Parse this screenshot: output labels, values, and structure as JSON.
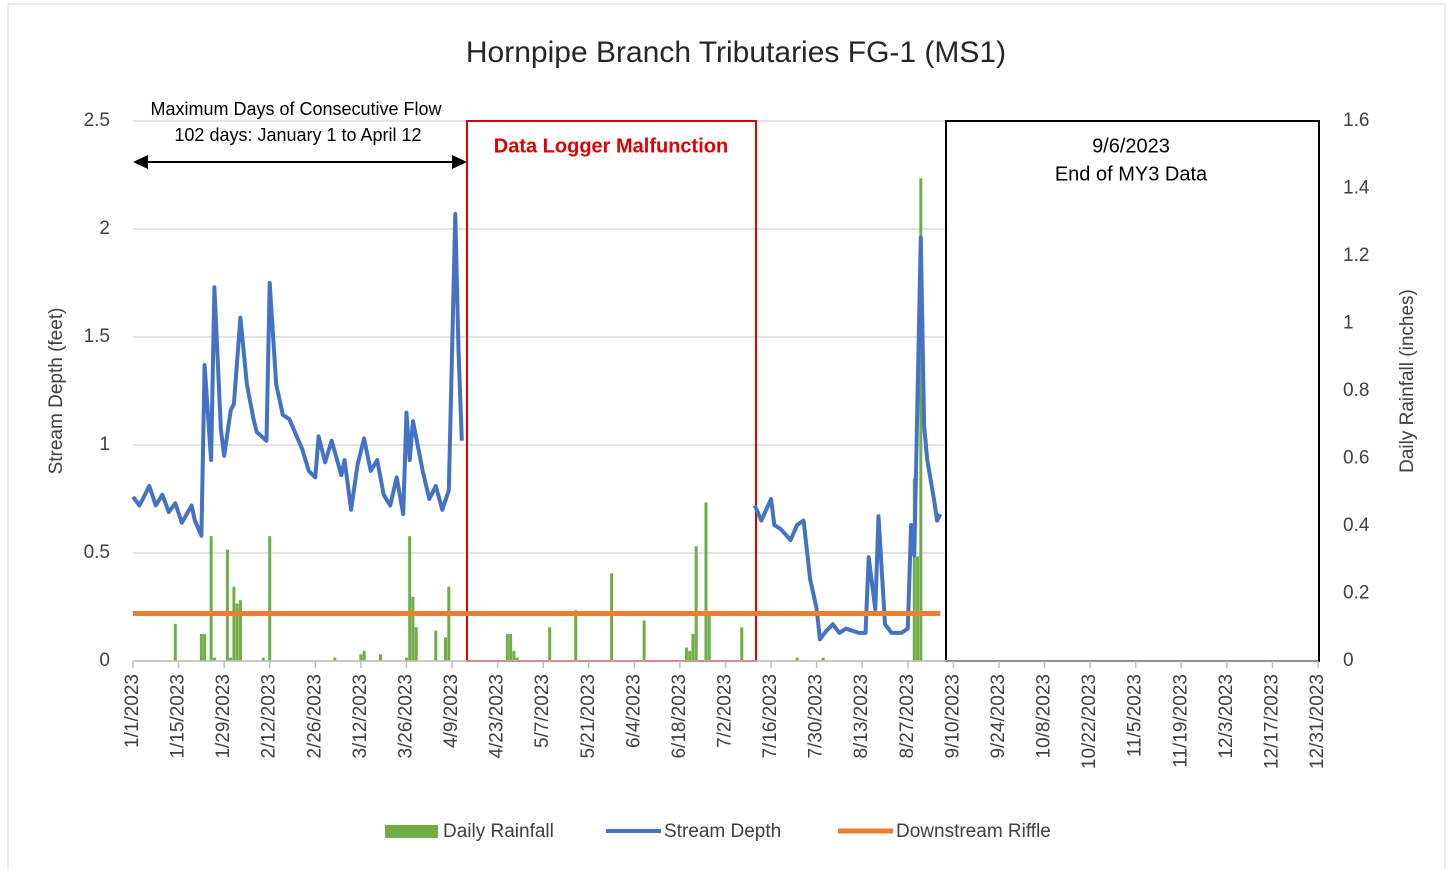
{
  "chart_data": {
    "type": "combo",
    "title": "Hornpipe Branch Tributaries FG-1 (MS1)",
    "ylabel": "Stream Depth (feet)",
    "y2label": "Daily Rainfall (inches)",
    "xlim": [
      "1/1/2023",
      "12/31/2023"
    ],
    "xticks": [
      "1/1/2023",
      "1/15/2023",
      "1/29/2023",
      "2/12/2023",
      "2/26/2023",
      "3/12/2023",
      "3/26/2023",
      "4/9/2023",
      "4/23/2023",
      "5/7/2023",
      "5/21/2023",
      "6/4/2023",
      "6/18/2023",
      "7/2/2023",
      "7/16/2023",
      "7/30/2023",
      "8/13/2023",
      "8/27/2023",
      "9/10/2023",
      "9/24/2023",
      "10/8/2023",
      "10/22/2023",
      "11/5/2023",
      "11/19/2023",
      "12/3/2023",
      "12/17/2023",
      "12/31/2023"
    ],
    "ylim": [
      0,
      2.5
    ],
    "yticks": [
      0,
      0.5,
      1,
      1.5,
      2,
      2.5
    ],
    "y2lim": [
      0,
      1.6
    ],
    "y2ticks": [
      0,
      0.2,
      0.4,
      0.6,
      0.8,
      1,
      1.2,
      1.4,
      1.6
    ],
    "grid": true,
    "legend": "bottom",
    "annotations": [
      {
        "text": "Maximum Days of Consecutive Flow"
      },
      {
        "text": "102 days: January 1 to April 12"
      },
      {
        "text": "Data Logger Malfunction"
      },
      {
        "text": "9/6/2023"
      },
      {
        "text": "End of MY3 Data"
      }
    ],
    "series": [
      {
        "name": "Daily Rainfall",
        "type": "bar",
        "axis": "y2",
        "color": "#70ad47",
        "x": [
          "1/14/2023",
          "1/22/2023",
          "1/23/2023",
          "1/25/2023",
          "1/26/2023",
          "1/30/2023",
          "1/31/2023",
          "2/1/2023",
          "2/2/2023",
          "2/3/2023",
          "2/10/2023",
          "2/12/2023",
          "3/4/2023",
          "3/12/2023",
          "3/13/2023",
          "3/18/2023",
          "3/26/2023",
          "3/27/2023",
          "3/28/2023",
          "3/29/2023",
          "4/4/2023",
          "4/7/2023",
          "4/8/2023",
          "4/26/2023",
          "4/27/2023",
          "4/28/2023",
          "4/29/2023",
          "5/9/2023",
          "5/17/2023",
          "5/28/2023",
          "6/7/2023",
          "6/20/2023",
          "6/21/2023",
          "6/22/2023",
          "6/23/2023",
          "6/26/2023",
          "6/27/2023",
          "7/7/2023",
          "7/24/2023",
          "8/1/2023",
          "8/29/2023",
          "8/30/2023",
          "8/31/2023"
        ],
        "values": [
          0.11,
          0.08,
          0.08,
          0.37,
          0.01,
          0.33,
          0.01,
          0.22,
          0.17,
          0.18,
          0.01,
          0.37,
          0.01,
          0.02,
          0.03,
          0.02,
          0.01,
          0.37,
          0.19,
          0.1,
          0.09,
          0.07,
          0.22,
          0.08,
          0.08,
          0.03,
          0.01,
          0.1,
          0.15,
          0.26,
          0.12,
          0.04,
          0.03,
          0.08,
          0.34,
          0.47,
          0.14,
          0.1,
          0.01,
          0.01,
          0.54,
          0.31,
          1.43
        ]
      },
      {
        "name": "Stream Depth",
        "type": "line",
        "color": "#4472c4",
        "x": [
          "1/1/2023",
          "1/3/2023",
          "1/6/2023",
          "1/8/2023",
          "1/10/2023",
          "1/12/2023",
          "1/14/2023",
          "1/16/2023",
          "1/19/2023",
          "1/20/2023",
          "1/22/2023",
          "1/23/2023",
          "1/25/2023",
          "1/26/2023",
          "1/28/2023",
          "1/29/2023",
          "1/31/2023",
          "2/1/2023",
          "2/3/2023",
          "2/5/2023",
          "2/7/2023",
          "2/8/2023",
          "2/11/2023",
          "2/12/2023",
          "2/14/2023",
          "2/16/2023",
          "2/18/2023",
          "2/20/2023",
          "2/22/2023",
          "2/24/2023",
          "2/26/2023",
          "2/27/2023",
          "3/1/2023",
          "3/3/2023",
          "3/6/2023",
          "3/7/2023",
          "3/9/2023",
          "3/11/2023",
          "3/13/2023",
          "3/15/2023",
          "3/17/2023",
          "3/19/2023",
          "3/21/2023",
          "3/23/2023",
          "3/25/2023",
          "3/26/2023",
          "3/27/2023",
          "3/28/2023",
          "3/31/2023",
          "4/2/2023",
          "4/4/2023",
          "4/6/2023",
          "4/8/2023",
          "4/10/2023",
          "4/11/2023",
          "4/12/2023",
          "5/27/2023",
          "7/11/2023",
          "7/13/2023",
          "7/16/2023",
          "7/17/2023",
          "7/19/2023",
          "7/22/2023",
          "7/24/2023",
          "7/26/2023",
          "7/28/2023",
          "7/30/2023",
          "7/31/2023",
          "8/2/2023",
          "8/4/2023",
          "8/6/2023",
          "8/8/2023",
          "8/10/2023",
          "8/12/2023",
          "8/14/2023",
          "8/15/2023",
          "8/17/2023",
          "8/18/2023",
          "8/20/2023",
          "8/22/2023",
          "8/25/2023",
          "8/27/2023",
          "8/28/2023",
          "8/29/2023",
          "8/31/2023",
          "9/1/2023",
          "9/2/2023",
          "9/4/2023",
          "9/5/2023",
          "9/6/2023"
        ],
        "values": [
          0.76,
          0.72,
          0.81,
          0.72,
          0.77,
          0.69,
          0.73,
          0.64,
          0.72,
          0.65,
          0.58,
          1.37,
          0.93,
          1.73,
          1.07,
          0.95,
          1.16,
          1.19,
          1.59,
          1.28,
          1.12,
          1.06,
          1.02,
          1.75,
          1.28,
          1.14,
          1.12,
          1.05,
          0.98,
          0.88,
          0.85,
          1.04,
          0.92,
          1.02,
          0.86,
          0.93,
          0.7,
          0.91,
          1.03,
          0.88,
          0.93,
          0.77,
          0.72,
          0.85,
          0.68,
          1.15,
          0.93,
          1.11,
          0.88,
          0.75,
          0.81,
          0.7,
          0.79,
          2.07,
          1.44,
          1.02,
          null,
          0.72,
          0.65,
          0.75,
          0.63,
          0.61,
          0.56,
          0.63,
          0.65,
          0.38,
          0.24,
          0.1,
          0.14,
          0.17,
          0.13,
          0.15,
          0.14,
          0.13,
          0.13,
          0.48,
          0.24,
          0.67,
          0.17,
          0.13,
          0.13,
          0.15,
          0.63,
          0.49,
          1.96,
          1.09,
          0.93,
          0.75,
          0.65,
          0.68
        ]
      },
      {
        "name": "Downstream Riffle",
        "type": "line",
        "color": "#ed7d31",
        "x": [
          "1/1/2023",
          "9/6/2023"
        ],
        "values": [
          0.22,
          0.22
        ]
      }
    ]
  }
}
